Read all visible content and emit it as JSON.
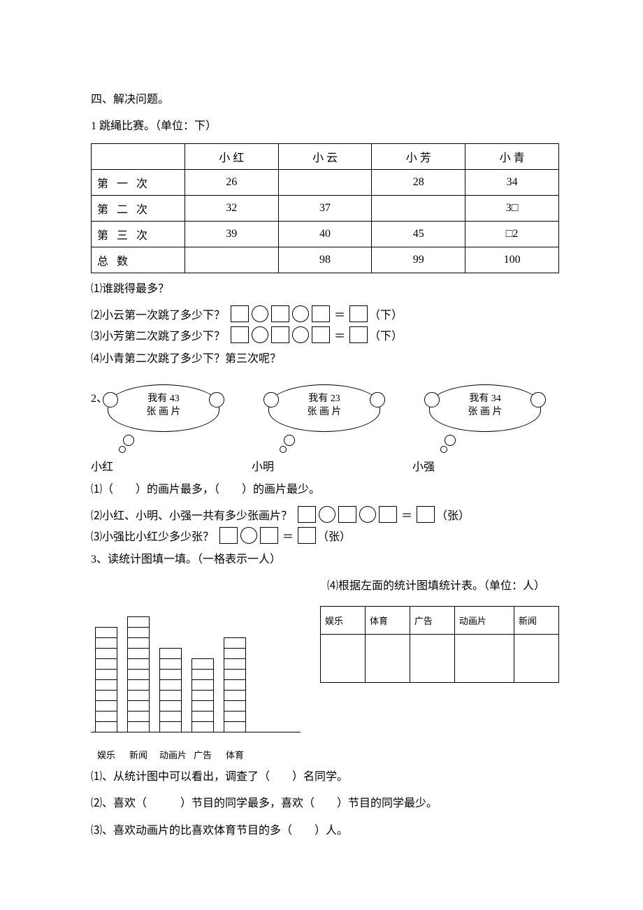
{
  "section_header": "四、解决问题。",
  "q1": {
    "title": "1 跳绳比赛。（单位：下）",
    "columns": [
      "",
      "小 红",
      "小 云",
      "小 芳",
      "小 青"
    ],
    "rows": [
      {
        "label": "第 一 次",
        "cells": [
          "26",
          "",
          "28",
          "34"
        ]
      },
      {
        "label": "第 二 次",
        "cells": [
          "32",
          "37",
          "",
          "3□"
        ]
      },
      {
        "label": "第 三 次",
        "cells": [
          "39",
          "40",
          "45",
          "□2"
        ]
      },
      {
        "label": "总    数",
        "cells": [
          "",
          "98",
          "99",
          "100"
        ]
      }
    ],
    "sub1": "⑴谁跳得最多？",
    "sub2_label": "⑵小云第一次跳了多少下？",
    "sub2_unit": "（下）",
    "sub3_label": "⑶小芳第二次跳了多少下？",
    "sub3_unit": "（下）",
    "sub4": "⑷小青第二次跳了多少下？第三次呢？"
  },
  "q2": {
    "prefix": "2、",
    "clouds": [
      {
        "line1": "我有 43",
        "line2": "张 画 片"
      },
      {
        "line1": "我有 23",
        "line2": "张 画 片"
      },
      {
        "line1": "我有 34",
        "line2": "张 画 片"
      }
    ],
    "names": [
      "小红",
      "小明",
      "小强"
    ],
    "sub1": "⑴（　　）的画片最多，（　　）的画片最少。",
    "sub2_label": "⑵小红、小明、小强一共有多少张画片？",
    "sub2_unit": "（张）",
    "sub3_label": "⑶小强比小红少多少张？",
    "sub3_unit": "（张）"
  },
  "q3": {
    "title": "3、读统计图填一填。（一格表示一人）",
    "sub4_title": "⑷根据左面的统计图填统计表。（单位：人）",
    "bars": [
      {
        "label": "娱乐",
        "cells": 10
      },
      {
        "label": "新闻",
        "cells": 11
      },
      {
        "label": "动画片",
        "cells": 8
      },
      {
        "label": "广告",
        "cells": 7
      },
      {
        "label": "体育",
        "cells": 9
      }
    ],
    "stat_headers": [
      "娱乐",
      "体育",
      "广告",
      "动画片",
      "新闻"
    ],
    "sub1": "⑴、从统计图中可以看出，调查了（　　）名同学。",
    "sub2": "⑵、喜欢（　　　）节目的同学最多，喜欢（　　）节目的同学最少。",
    "sub3": "⑶、喜欢动画片的比喜欢体育节目的多（　　）人。"
  }
}
